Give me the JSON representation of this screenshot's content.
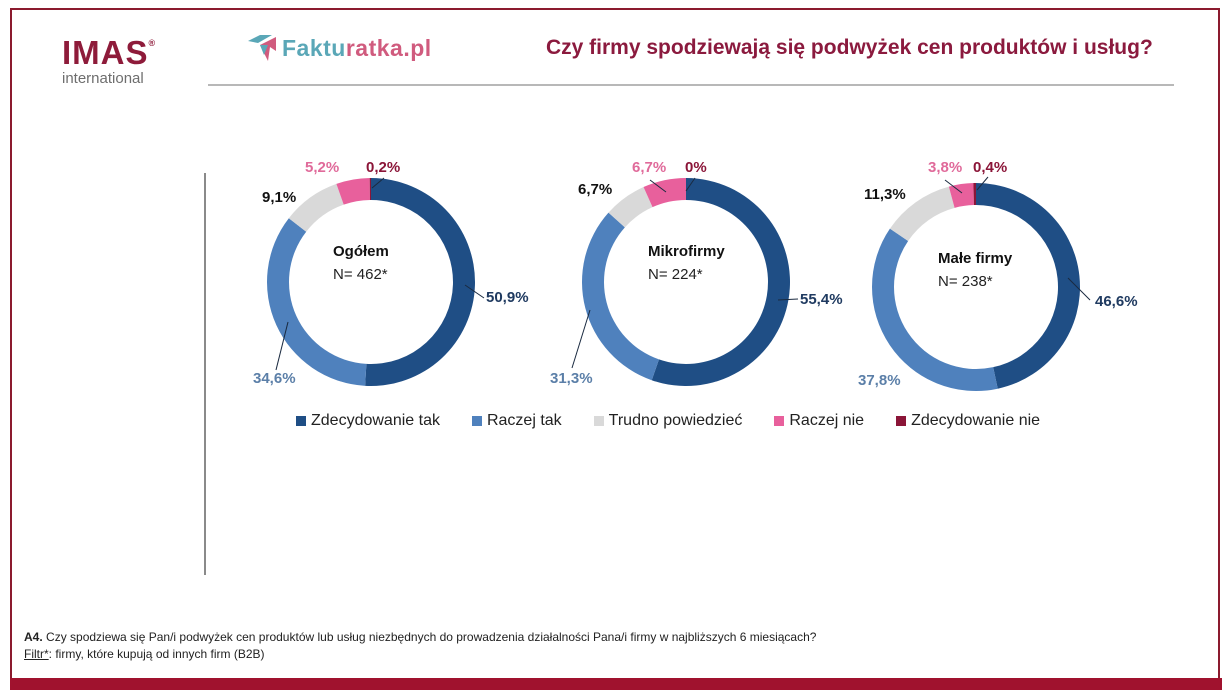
{
  "header": {
    "logo_imas": "IMAS",
    "logo_imas_reg": "®",
    "logo_imas_sub": "international",
    "logo_fakturatka_a": "Faktu",
    "logo_fakturatka_b": "ratka.pl",
    "title": "Czy firmy spodziewają się podwyżek cen produktów i usług?"
  },
  "legend": [
    {
      "label": "Zdecydowanie tak",
      "color": "#1f4e85"
    },
    {
      "label": "Raczej tak",
      "color": "#4f81bd"
    },
    {
      "label": "Trudno powiedzieć",
      "color": "#d9d9d9"
    },
    {
      "label": "Raczej nie",
      "color": "#e8609c"
    },
    {
      "label": "Zdecydowanie nie",
      "color": "#8b1538"
    }
  ],
  "footer": {
    "question_id": "A4.",
    "question_text": " Czy spodziewa się Pan/i podwyżek cen produktów  lub usług niezbędnych do prowadzenia działalności Pana/i firmy w najbliższych 6 miesiącach?",
    "filter_label": "Filtr*",
    "filter_text": ": firmy, które kupują od innych firm (B2B)"
  },
  "chart_data": [
    {
      "type": "pie",
      "title": "Ogółem",
      "subtitle": "N= 462*",
      "categories": [
        "Zdecydowanie tak",
        "Raczej tak",
        "Trudno powiedzieć",
        "Raczej nie",
        "Zdecydowanie nie"
      ],
      "values": [
        50.9,
        34.6,
        9.1,
        5.2,
        0.2
      ],
      "labels": [
        "50,9%",
        "34,6%",
        "9,1%",
        "5,2%",
        "0,2%"
      ],
      "donut": true
    },
    {
      "type": "pie",
      "title": "Mikrofirmy",
      "subtitle": "N= 224*",
      "categories": [
        "Zdecydowanie tak",
        "Raczej tak",
        "Trudno powiedzieć",
        "Raczej nie",
        "Zdecydowanie nie"
      ],
      "values": [
        55.4,
        31.3,
        6.7,
        6.7,
        0
      ],
      "labels": [
        "55,4%",
        "31,3%",
        "6,7%",
        "6,7%",
        "0%"
      ],
      "donut": true
    },
    {
      "type": "pie",
      "title": "Małe firmy",
      "subtitle": "N= 238*",
      "categories": [
        "Zdecydowanie tak",
        "Raczej tak",
        "Trudno powiedzieć",
        "Raczej nie",
        "Zdecydowanie nie"
      ],
      "values": [
        46.6,
        37.8,
        11.3,
        3.8,
        0.4
      ],
      "labels": [
        "46,6%",
        "37,8%",
        "11,3%",
        "3,8%",
        "0,4%"
      ],
      "donut": true
    }
  ]
}
